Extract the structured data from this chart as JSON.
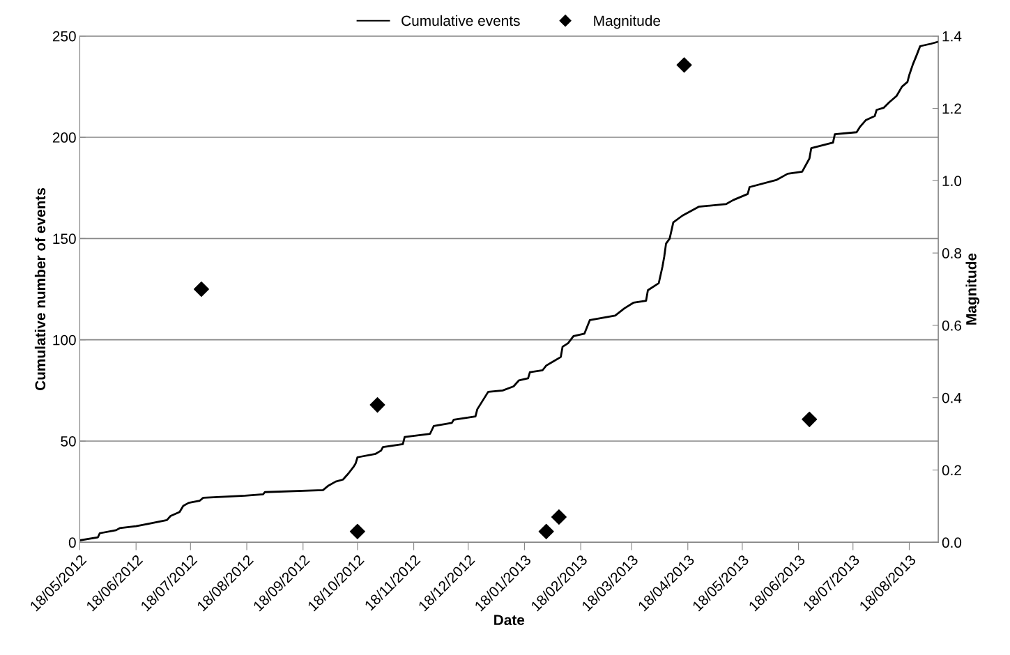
{
  "chart_data": {
    "type": "line",
    "xlabel": "Date",
    "ylabel": "Cumulative number of events",
    "y2label": "Magnitude",
    "legend": "top",
    "grid": "y",
    "xlim": [
      "2012-05-18",
      "2013-09-03"
    ],
    "xticks": [
      {
        "value": "2012-05-18",
        "label": "18/05/2012"
      },
      {
        "value": "2012-06-18",
        "label": "18/06/2012"
      },
      {
        "value": "2012-07-18",
        "label": "18/07/2012"
      },
      {
        "value": "2012-08-18",
        "label": "18/08/2012"
      },
      {
        "value": "2012-09-18",
        "label": "18/09/2012"
      },
      {
        "value": "2012-10-18",
        "label": "18/10/2012"
      },
      {
        "value": "2012-11-18",
        "label": "18/11/2012"
      },
      {
        "value": "2012-12-18",
        "label": "18/12/2012"
      },
      {
        "value": "2013-01-18",
        "label": "18/01/2013"
      },
      {
        "value": "2013-02-18",
        "label": "18/02/2013"
      },
      {
        "value": "2013-03-18",
        "label": "18/03/2013"
      },
      {
        "value": "2013-04-18",
        "label": "18/04/2013"
      },
      {
        "value": "2013-05-18",
        "label": "18/05/2013"
      },
      {
        "value": "2013-06-18",
        "label": "18/06/2013"
      },
      {
        "value": "2013-07-18",
        "label": "18/07/2013"
      },
      {
        "value": "2013-08-18",
        "label": "18/08/2013"
      }
    ],
    "ylim": [
      0,
      250
    ],
    "yticks": [
      0,
      50,
      100,
      150,
      200,
      250
    ],
    "y2lim": [
      0,
      1.4
    ],
    "y2ticks": [
      {
        "value": 0,
        "label": "0.0"
      },
      {
        "value": 0.2,
        "label": "0.2"
      },
      {
        "value": 0.4,
        "label": "0.4"
      },
      {
        "value": 0.6,
        "label": "0.6"
      },
      {
        "value": 0.8,
        "label": "0.8"
      },
      {
        "value": 1.0,
        "label": "1.0"
      },
      {
        "value": 1.2,
        "label": "1.2"
      },
      {
        "value": 1.4,
        "label": "1.4"
      }
    ],
    "series": [
      {
        "name": "Cumulative events",
        "color": "#000000",
        "marker": "none",
        "line_style": "solid",
        "x": [
          "2012-05-18",
          "2012-05-28",
          "2012-05-29",
          "2012-06-07",
          "2012-06-09",
          "2012-06-18",
          "2012-06-24",
          "2012-07-05",
          "2012-07-07",
          "2012-07-12",
          "2012-07-14",
          "2012-07-17",
          "2012-07-23",
          "2012-07-25",
          "2012-08-17",
          "2012-08-27",
          "2012-08-28",
          "2012-09-29",
          "2012-10-02",
          "2012-10-06",
          "2012-10-10",
          "2012-10-13",
          "2012-10-16",
          "2012-10-17",
          "2012-10-18",
          "2012-10-28",
          "2012-10-31",
          "2012-11-01",
          "2012-11-12",
          "2012-11-13",
          "2012-11-27",
          "2012-11-29",
          "2012-12-09",
          "2012-12-10",
          "2012-12-22",
          "2012-12-23",
          "2012-12-29",
          "2013-01-06",
          "2013-01-12",
          "2013-01-15",
          "2013-01-20",
          "2013-01-21",
          "2013-01-28",
          "2013-01-30",
          "2013-02-03",
          "2013-02-07",
          "2013-02-08",
          "2013-02-11",
          "2013-02-14",
          "2013-02-20",
          "2013-02-23",
          "2013-03-09",
          "2013-03-14",
          "2013-03-19",
          "2013-03-26",
          "2013-03-27",
          "2013-04-02",
          "2013-04-04",
          "2013-04-05",
          "2013-04-06",
          "2013-04-08",
          "2013-04-10",
          "2013-04-15",
          "2013-04-24",
          "2013-05-09",
          "2013-05-13",
          "2013-05-21",
          "2013-05-22",
          "2013-06-06",
          "2013-06-12",
          "2013-06-20",
          "2013-06-24",
          "2013-06-25",
          "2013-07-07",
          "2013-07-08",
          "2013-07-20",
          "2013-07-22",
          "2013-07-25",
          "2013-07-30",
          "2013-07-31",
          "2013-08-04",
          "2013-08-07",
          "2013-08-11",
          "2013-08-14",
          "2013-08-17",
          "2013-08-18",
          "2013-08-20",
          "2013-08-22",
          "2013-08-24",
          "2013-08-30",
          "2013-09-03"
        ],
        "values": [
          1,
          2.5,
          4.5,
          6,
          7,
          8,
          9,
          11,
          13,
          15,
          18,
          19.5,
          20.5,
          22,
          23,
          23.7,
          24.8,
          25.8,
          28,
          30,
          31,
          34,
          37.5,
          39,
          42,
          43.7,
          45.3,
          47,
          48.5,
          52,
          53.6,
          57.4,
          59,
          60.5,
          62.2,
          65.7,
          74.3,
          75,
          77,
          80,
          81,
          84,
          85,
          87.3,
          89.4,
          91.5,
          96.6,
          98.3,
          101.8,
          103,
          109.7,
          112,
          115.5,
          118.3,
          119.3,
          124.5,
          128,
          136,
          141,
          147.5,
          150,
          158,
          161.3,
          165.7,
          167,
          169,
          172,
          175.4,
          179,
          182,
          183,
          189.5,
          194.6,
          197.4,
          201.5,
          202.5,
          205.3,
          208.4,
          210.5,
          213.5,
          214.6,
          217.3,
          220.4,
          225,
          227.3,
          230.7,
          236,
          240.4,
          245,
          246.2,
          247.2
        ]
      },
      {
        "name": "Magnitude",
        "type": "scatter",
        "axis": "y2",
        "color": "#000000",
        "marker": "diamond",
        "x": [
          "2012-07-24",
          "2012-10-18",
          "2012-10-29",
          "2013-01-30",
          "2013-02-06",
          "2013-04-16",
          "2013-06-24"
        ],
        "values": [
          0.7,
          0.03,
          0.38,
          0.03,
          0.07,
          1.32,
          0.34
        ]
      }
    ]
  }
}
